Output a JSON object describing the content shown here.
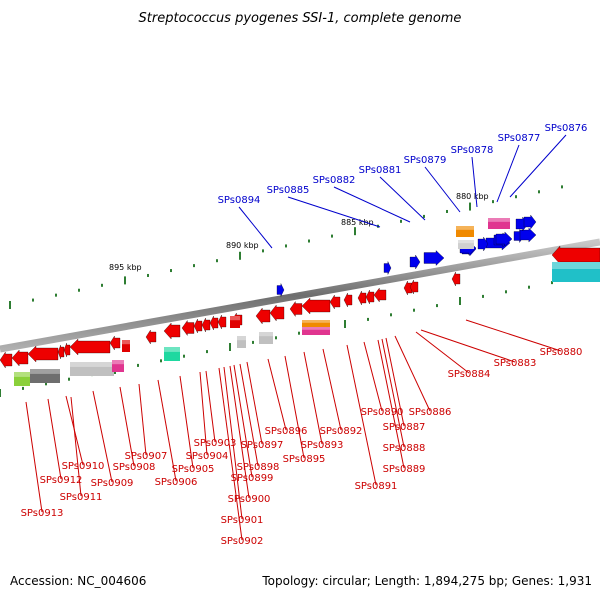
{
  "title": "Streptococcus pyogenes SSI-1, complete genome",
  "accession": "Accession: NC_004606",
  "summary": "Topology: circular; Length: 1,894,275 bp; Genes: 1,931",
  "scale_labels": [
    "880 kbp",
    "885 kbp",
    "890 kbp",
    "895 kbp"
  ],
  "colors": {
    "backbone": "#808080",
    "forward_label": "#0000cc",
    "reverse_label": "#cc0000",
    "forward_gene": "#0000ee",
    "reverse_gene": "#ee0000",
    "tick": "#2e7d32"
  },
  "forward_genes": [
    "SPs0876",
    "SPs0877",
    "SPs0878",
    "SPs0879",
    "SPs0881",
    "SPs0882",
    "SPs0885",
    "SPs0894"
  ],
  "reverse_genes": [
    "SPs0880",
    "SPs0883",
    "SPs0884",
    "SPs0886",
    "SPs0887",
    "SPs0888",
    "SPs0889",
    "SPs0890",
    "SPs0891",
    "SPs0892",
    "SPs0893",
    "SPs0895",
    "SPs0896",
    "SPs0897",
    "SPs0898",
    "SPs0899",
    "SPs0900",
    "SPs0901",
    "SPs0902",
    "SPs0903",
    "SPs0904",
    "SPs0905",
    "SPs0906",
    "SPs0907",
    "SPs0908",
    "SPs0909",
    "SPs0910",
    "SPs0911",
    "SPs0912",
    "SPs0913"
  ]
}
